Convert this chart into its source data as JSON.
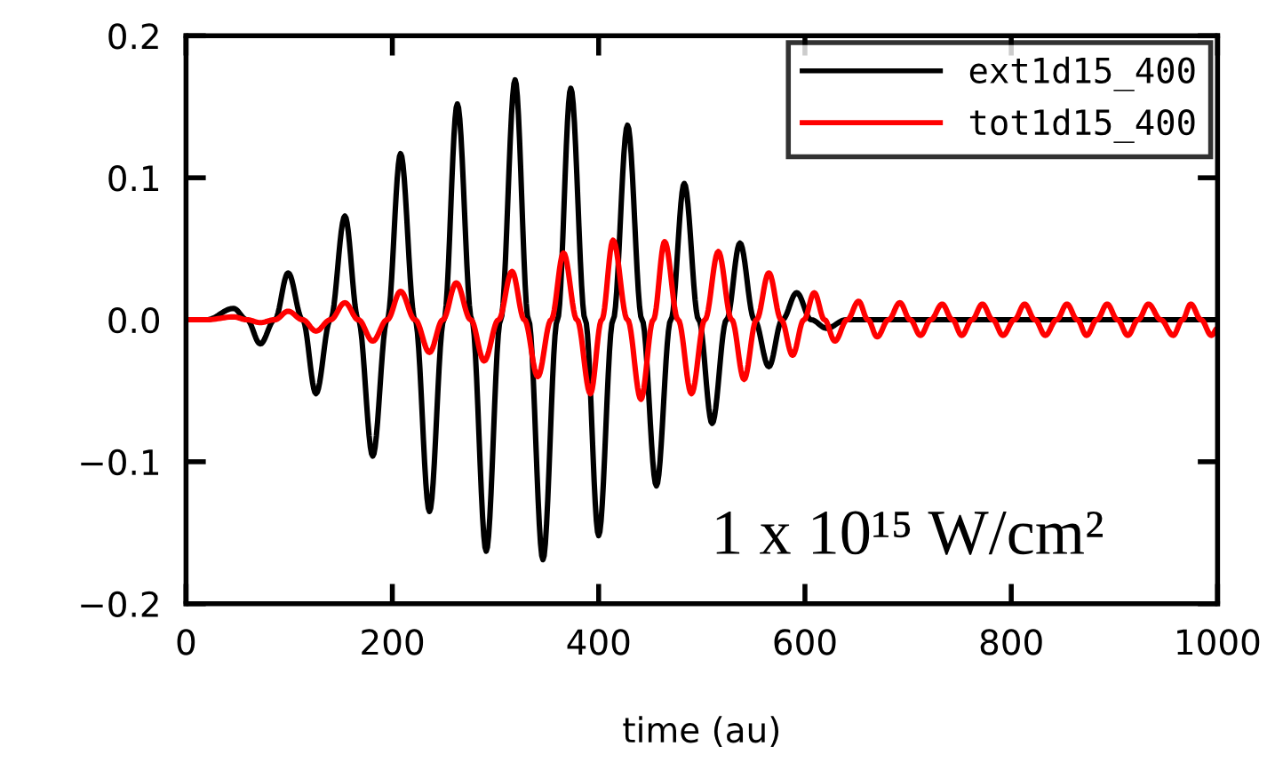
{
  "chart_data": {
    "type": "line",
    "xlabel": "time (au)",
    "xlim": [
      0,
      1000
    ],
    "xticks": [
      0,
      200,
      400,
      600,
      800,
      1000
    ],
    "ylim": [
      -0.2,
      0.2
    ],
    "yticks": [
      {
        "value": -0.2,
        "label": "−0.2"
      },
      {
        "value": -0.1,
        "label": "−0.1"
      },
      {
        "value": 0,
        "label": "0.0"
      },
      {
        "value": 0.1,
        "label": "0.1"
      },
      {
        "value": 0.2,
        "label": "0.2"
      }
    ],
    "grid": false,
    "legend": "top right",
    "marker": "none",
    "line_style": "solid",
    "annotations": [
      "1 x 10¹⁵ W/cm²"
    ],
    "series": [
      {
        "name": "ext1d15_400",
        "color": "#000000",
        "x": [
          0,
          20,
          46,
          59,
          72,
          86,
          99,
          113,
          126,
          140,
          154,
          167,
          181,
          195,
          208,
          222,
          236,
          250,
          263,
          277,
          291,
          305,
          319,
          332,
          346,
          360,
          373,
          387,
          400,
          414,
          428,
          442,
          456,
          470,
          483,
          497,
          510,
          524,
          537,
          551,
          565,
          578,
          592,
          606,
          621,
          640,
          1000
        ],
        "values": [
          0,
          0,
          0.008,
          0,
          -0.017,
          0,
          0.033,
          0,
          -0.052,
          0,
          0.073,
          0,
          -0.096,
          0,
          0.117,
          0,
          -0.135,
          0,
          0.152,
          0,
          -0.163,
          0,
          0.169,
          0,
          -0.169,
          0,
          0.163,
          0,
          -0.152,
          0,
          0.137,
          0,
          -0.117,
          0,
          0.096,
          0,
          -0.073,
          0,
          0.054,
          0,
          -0.033,
          0,
          0.019,
          0,
          -0.006,
          0,
          0
        ]
      },
      {
        "name": "tot1d15_400",
        "color": "#ff0000",
        "x": [
          0,
          20,
          46,
          59,
          72,
          86,
          99,
          113,
          126,
          140,
          154,
          167,
          181,
          195,
          208,
          222,
          236,
          249,
          262,
          276,
          289,
          303,
          316,
          328,
          341,
          354,
          366,
          379,
          392,
          403,
          414,
          428,
          441,
          453,
          464,
          477,
          490,
          503,
          516,
          529,
          541,
          553,
          565,
          577,
          588,
          599,
          609,
          619,
          629,
          641,
          652,
          661,
          670,
          681,
          692,
          702,
          712,
          722,
          733,
          743,
          752,
          762,
          772,
          782,
          792,
          803,
          813,
          823,
          833,
          844,
          854,
          864,
          873,
          883,
          893,
          903,
          913,
          923,
          933,
          945,
          957,
          966,
          974,
          984,
          994,
          1000
        ],
        "values": [
          0,
          0,
          0.002,
          0,
          -0.002,
          0,
          0.006,
          0,
          -0.008,
          0,
          0.012,
          0,
          -0.015,
          0,
          0.02,
          0,
          -0.023,
          0,
          0.026,
          0,
          -0.029,
          0,
          0.034,
          0,
          -0.04,
          0,
          0.047,
          0,
          -0.052,
          0,
          0.056,
          0,
          -0.056,
          0,
          0.055,
          0,
          -0.052,
          0,
          0.048,
          0,
          -0.042,
          0,
          0.033,
          0,
          -0.025,
          0,
          0.019,
          0,
          -0.015,
          0,
          0.013,
          0,
          -0.012,
          0,
          0.012,
          0,
          -0.011,
          0,
          0.011,
          0,
          -0.011,
          0,
          0.011,
          0,
          -0.011,
          0,
          0.011,
          0,
          -0.011,
          0,
          0.011,
          0,
          -0.011,
          0,
          0.011,
          0,
          -0.011,
          0,
          0.011,
          0,
          -0.011,
          0,
          0.011,
          0,
          -0.011,
          -0.006
        ]
      }
    ]
  }
}
